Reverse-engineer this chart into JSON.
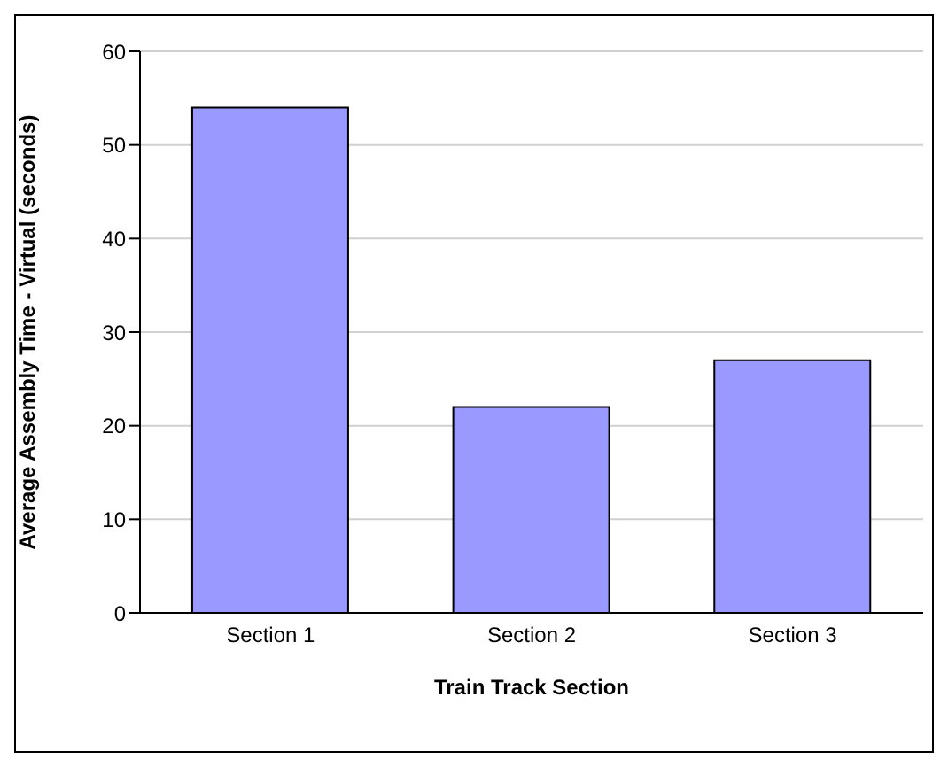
{
  "chart_data": {
    "type": "bar",
    "xlabel": "Train Track Section",
    "ylabel": "Average Assembly Time - Virtual (seconds)",
    "categories": [
      "Section 1",
      "Section 2",
      "Section 3"
    ],
    "values": [
      54,
      22,
      27
    ],
    "color": "#9999ff",
    "ylim": [
      0,
      60
    ],
    "yticks": [
      0,
      10,
      20,
      30,
      40,
      50,
      60
    ],
    "grid": "y"
  }
}
